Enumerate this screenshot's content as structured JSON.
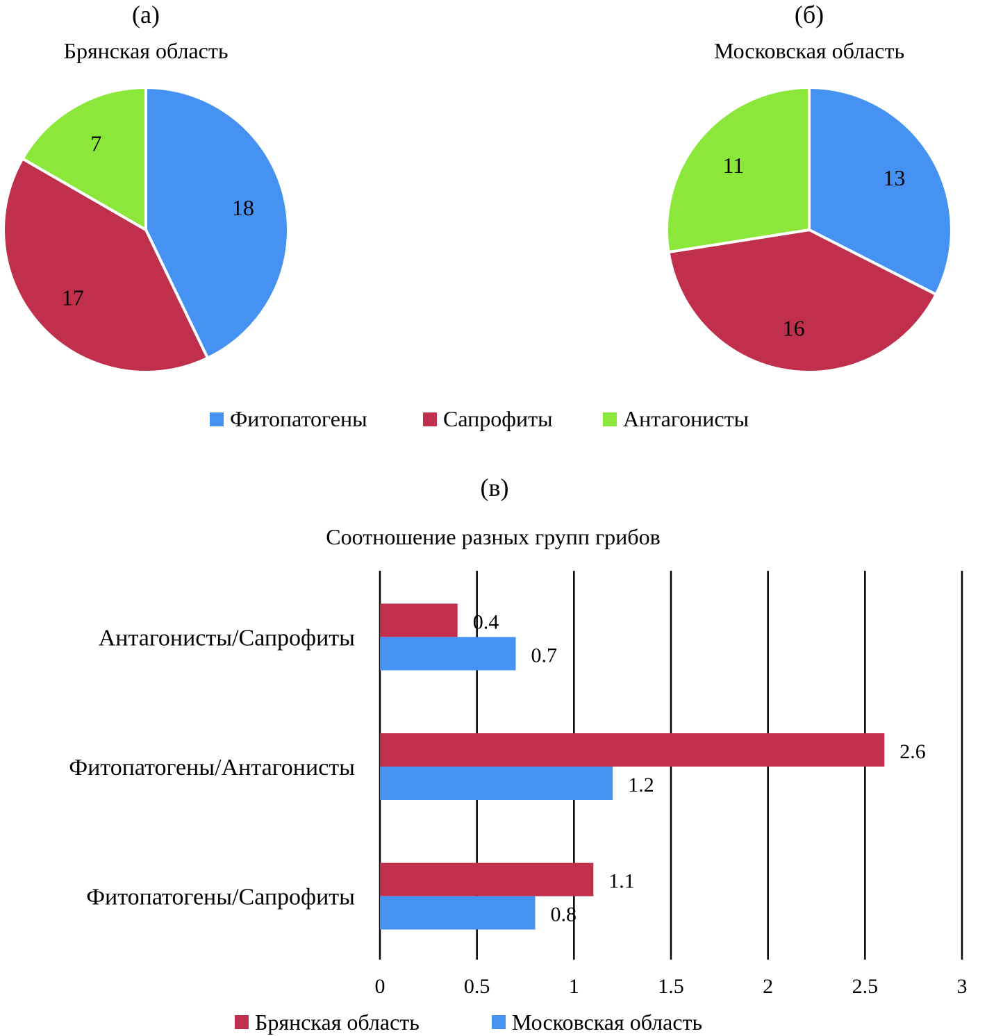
{
  "chart_data": [
    {
      "type": "pie",
      "panel": "(а)",
      "title": "Брянская область",
      "labels": [
        "Фитопатогены",
        "Сапрофиты",
        "Антагонисты"
      ],
      "values": [
        18,
        17,
        7
      ],
      "colors": [
        "#4592f3",
        "#c0304c",
        "#8be83a"
      ]
    },
    {
      "type": "pie",
      "panel": "(б)",
      "title": "Московская область",
      "labels": [
        "Фитопатогены",
        "Сапрофиты",
        "Антагонисты"
      ],
      "values": [
        13,
        16,
        11
      ],
      "colors": [
        "#4592f3",
        "#c0304c",
        "#8be83a"
      ]
    },
    {
      "type": "bar",
      "orientation": "horizontal",
      "panel": "(в)",
      "title": "Соотношение разных групп грибов",
      "categories": [
        "Антагонисты/Сапрофиты",
        "Фитопатогены/Антагонисты",
        "Фитопатогены/Сапрофиты"
      ],
      "series": [
        {
          "name": "Брянская область",
          "values": [
            0.4,
            2.6,
            1.1
          ],
          "color": "#c0304c"
        },
        {
          "name": "Московская область",
          "values": [
            0.7,
            1.2,
            0.8
          ],
          "color": "#4592f3"
        }
      ],
      "xlim": [
        0,
        3
      ],
      "xticks": [
        "0",
        "0.5",
        "1",
        "1.5",
        "2",
        "2.5",
        "3"
      ],
      "xtick_values": [
        0,
        0.5,
        1,
        1.5,
        2,
        2.5,
        3
      ],
      "grid": true,
      "legend": "bottom"
    }
  ],
  "pie_legend": {
    "items": [
      {
        "label": "Фитопатогены",
        "color": "#4592f3"
      },
      {
        "label": "Сапрофиты",
        "color": "#c0304c"
      },
      {
        "label": "Антагонисты",
        "color": "#8be83a"
      }
    ]
  }
}
